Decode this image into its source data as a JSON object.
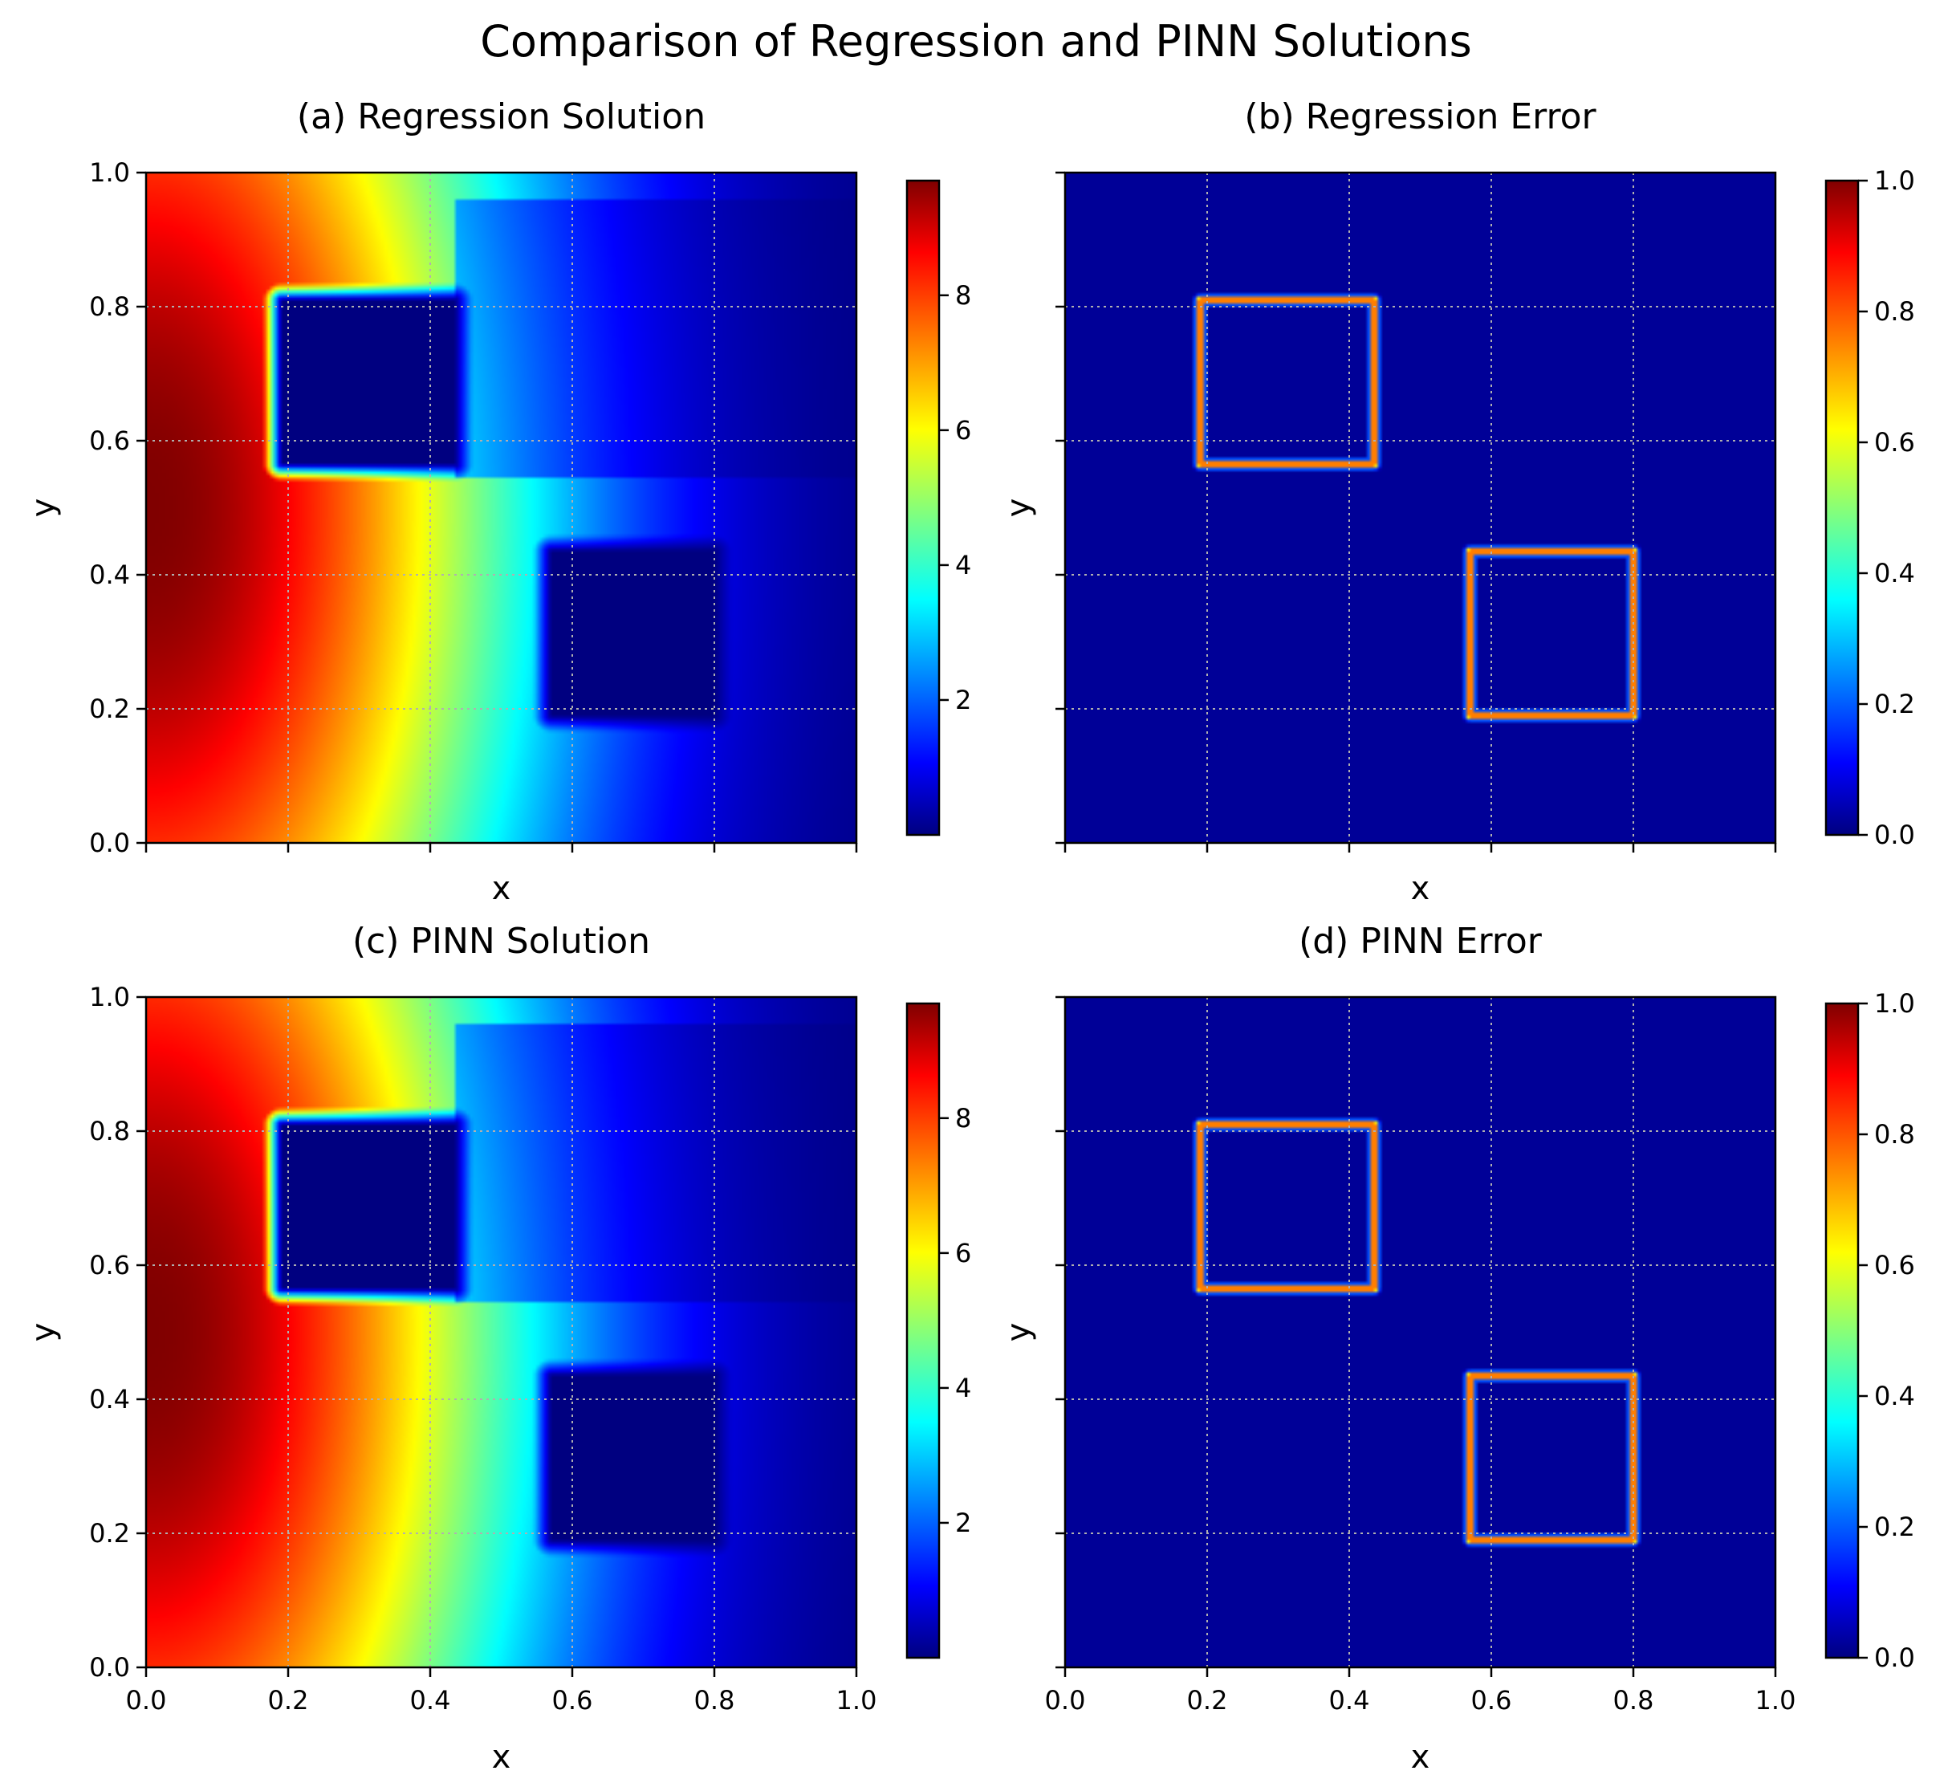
{
  "figure": {
    "title": "Comparison of Regression and PINN Solutions"
  },
  "colormap": {
    "name": "jet",
    "stops": [
      "#000080",
      "#0000ff",
      "#00ffff",
      "#ffff00",
      "#ff0000",
      "#800000"
    ]
  },
  "chart_data": [
    {
      "type": "heatmap",
      "title": "(a) Regression Solution",
      "xlabel": "x",
      "ylabel": "y",
      "xlim": [
        0.0,
        1.0
      ],
      "ylim": [
        0.0,
        1.0
      ],
      "xticks": [
        "0.0",
        "0.2",
        "0.4",
        "0.6",
        "0.8",
        "1.0"
      ],
      "yticks": [
        "0.0",
        "0.2",
        "0.4",
        "0.6",
        "0.8",
        "1.0"
      ],
      "show_xticklabels": false,
      "show_yticklabels": true,
      "grid": true,
      "field": "solution",
      "colorbar": {
        "range": [
          0.0,
          9.7
        ],
        "ticks": [
          "2",
          "4",
          "6",
          "8"
        ],
        "tick_values": [
          2,
          4,
          6,
          8
        ]
      },
      "obstacles": [
        {
          "x": [
            0.19,
            0.435
          ],
          "y": [
            0.565,
            0.81
          ]
        },
        {
          "x": [
            0.57,
            0.8
          ],
          "y": [
            0.19,
            0.435
          ]
        }
      ]
    },
    {
      "type": "heatmap",
      "title": "(b) Regression Error",
      "xlabel": "x",
      "ylabel": "y",
      "xlim": [
        0.0,
        1.0
      ],
      "ylim": [
        0.0,
        1.0
      ],
      "xticks": [
        "0.0",
        "0.2",
        "0.4",
        "0.6",
        "0.8",
        "1.0"
      ],
      "yticks": [
        "0.0",
        "0.2",
        "0.4",
        "0.6",
        "0.8",
        "1.0"
      ],
      "show_xticklabels": false,
      "show_yticklabels": false,
      "grid": true,
      "field": "error",
      "colorbar": {
        "range": [
          0.0,
          1.0
        ],
        "ticks": [
          "0.0",
          "0.2",
          "0.4",
          "0.6",
          "0.8",
          "1.0"
        ],
        "tick_values": [
          0.0,
          0.2,
          0.4,
          0.6,
          0.8,
          1.0
        ]
      },
      "obstacles": [
        {
          "x": [
            0.19,
            0.435
          ],
          "y": [
            0.565,
            0.81
          ]
        },
        {
          "x": [
            0.57,
            0.8
          ],
          "y": [
            0.19,
            0.435
          ]
        }
      ]
    },
    {
      "type": "heatmap",
      "title": "(c) PINN Solution",
      "xlabel": "x",
      "ylabel": "y",
      "xlim": [
        0.0,
        1.0
      ],
      "ylim": [
        0.0,
        1.0
      ],
      "xticks": [
        "0.0",
        "0.2",
        "0.4",
        "0.6",
        "0.8",
        "1.0"
      ],
      "yticks": [
        "0.0",
        "0.2",
        "0.4",
        "0.6",
        "0.8",
        "1.0"
      ],
      "show_xticklabels": true,
      "show_yticklabels": true,
      "grid": true,
      "field": "solution",
      "colorbar": {
        "range": [
          0.0,
          9.7
        ],
        "ticks": [
          "2",
          "4",
          "6",
          "8"
        ],
        "tick_values": [
          2,
          4,
          6,
          8
        ]
      },
      "obstacles": [
        {
          "x": [
            0.19,
            0.435
          ],
          "y": [
            0.565,
            0.81
          ]
        },
        {
          "x": [
            0.57,
            0.8
          ],
          "y": [
            0.19,
            0.435
          ]
        }
      ]
    },
    {
      "type": "heatmap",
      "title": "(d) PINN Error",
      "xlabel": "x",
      "ylabel": "y",
      "xlim": [
        0.0,
        1.0
      ],
      "ylim": [
        0.0,
        1.0
      ],
      "xticks": [
        "0.0",
        "0.2",
        "0.4",
        "0.6",
        "0.8",
        "1.0"
      ],
      "yticks": [
        "0.0",
        "0.2",
        "0.4",
        "0.6",
        "0.8",
        "1.0"
      ],
      "show_xticklabels": true,
      "show_yticklabels": false,
      "grid": true,
      "field": "error",
      "colorbar": {
        "range": [
          0.0,
          1.0
        ],
        "ticks": [
          "0.0",
          "0.2",
          "0.4",
          "0.6",
          "0.8",
          "1.0"
        ],
        "tick_values": [
          0.0,
          0.2,
          0.4,
          0.6,
          0.8,
          1.0
        ]
      },
      "obstacles": [
        {
          "x": [
            0.19,
            0.435
          ],
          "y": [
            0.565,
            0.81
          ]
        },
        {
          "x": [
            0.57,
            0.8
          ],
          "y": [
            0.19,
            0.435
          ]
        }
      ]
    }
  ]
}
